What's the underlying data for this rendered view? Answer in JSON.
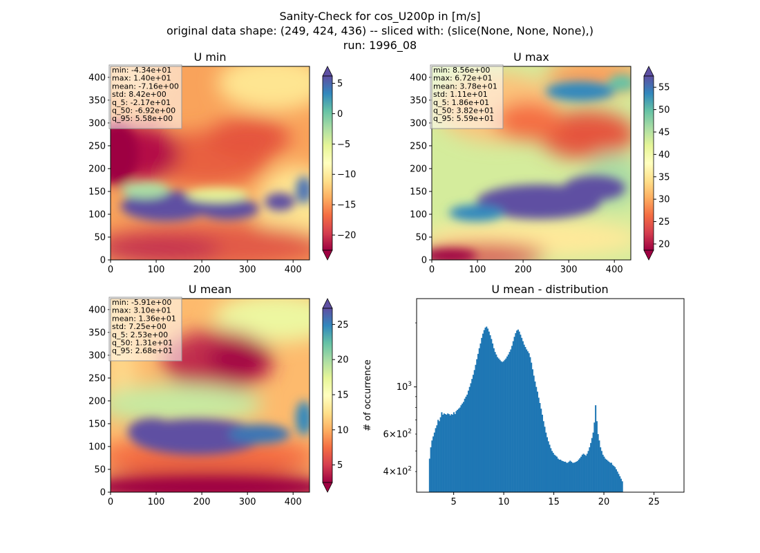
{
  "figure": {
    "title_lines": [
      "Sanity-Check for cos_U200p in [m/s]",
      "original data shape: (249, 424, 436) -- sliced with: (slice(None, None, None),)",
      "run: 1996_08"
    ]
  },
  "chart_data": [
    {
      "type": "heatmap",
      "title": "U min",
      "colormap": "Spectral",
      "x_ticks": [
        "0",
        "100",
        "200",
        "300",
        "400"
      ],
      "y_ticks": [
        "0",
        "50",
        "100",
        "150",
        "200",
        "250",
        "300",
        "350",
        "400"
      ],
      "xlim": [
        0,
        436
      ],
      "ylim": [
        0,
        424
      ],
      "colorbar": {
        "range": [
          -22.5,
          6.2
        ],
        "ticks": [
          -20,
          -15,
          -10,
          -5,
          0,
          5
        ],
        "tick_labels": [
          "−20",
          "−15",
          "−10",
          "−5",
          "0",
          "5"
        ],
        "extend": "both"
      },
      "stats": [
        "min: -4.34e+01",
        "max: 1.40e+01",
        "mean: -7.16e+00",
        "std: 8.42e+00",
        "q_5: -2.17e+01",
        "q_50: -6.92e+00",
        "q_95: 5.58e+00"
      ]
    },
    {
      "type": "heatmap",
      "title": "U max",
      "colormap": "Spectral",
      "x_ticks": [
        "0",
        "100",
        "200",
        "300",
        "400"
      ],
      "y_ticks": [
        "0",
        "50",
        "100",
        "150",
        "200",
        "250",
        "300",
        "350",
        "400"
      ],
      "xlim": [
        0,
        436
      ],
      "ylim": [
        0,
        424
      ],
      "colorbar": {
        "range": [
          18.6,
          57.5
        ],
        "ticks": [
          20,
          25,
          30,
          35,
          40,
          45,
          50,
          55
        ],
        "tick_labels": [
          "20",
          "25",
          "30",
          "35",
          "40",
          "45",
          "50",
          "55"
        ],
        "extend": "both"
      },
      "stats": [
        "min: 8.56e+00",
        "max: 6.72e+01",
        "mean: 3.78e+01",
        "std: 1.11e+01",
        "q_5: 1.86e+01",
        "q_50: 3.82e+01",
        "q_95: 5.59e+01"
      ]
    },
    {
      "type": "heatmap",
      "title": "U mean",
      "colormap": "Spectral",
      "x_ticks": [
        "0",
        "100",
        "200",
        "300",
        "400"
      ],
      "y_ticks": [
        "0",
        "50",
        "100",
        "150",
        "200",
        "250",
        "300",
        "350",
        "400"
      ],
      "xlim": [
        0,
        436
      ],
      "ylim": [
        0,
        424
      ],
      "colorbar": {
        "range": [
          2.5,
          27.3
        ],
        "ticks": [
          5,
          10,
          15,
          20,
          25
        ],
        "tick_labels": [
          "5",
          "10",
          "15",
          "20",
          "25"
        ],
        "extend": "both"
      },
      "stats": [
        "min: -5.91e+00",
        "max: 3.10e+01",
        "mean: 1.36e+01",
        "std: 7.25e+00",
        "q_5: 2.53e+00",
        "q_50: 1.31e+01",
        "q_95: 2.68e+01"
      ]
    },
    {
      "type": "bar",
      "title": "U mean - distribution",
      "ylabel": "# of occurrence",
      "xlabel": "",
      "y_scale": "log",
      "xlim": [
        1.3,
        28.0
      ],
      "ylim": [
        320,
        2600
      ],
      "x_ticks": [
        "5",
        "10",
        "15",
        "20",
        "25"
      ],
      "y_major_ticks": [
        {
          "value": 1000,
          "label": "10^3"
        }
      ],
      "y_minor_labeled": [
        {
          "value": 400,
          "label": "4×10^2"
        },
        {
          "value": 600,
          "label": "6×10^2"
        }
      ],
      "color": "#1f77b4",
      "bin_start": 2.53,
      "bin_width": 0.121,
      "values": [
        460,
        520,
        560,
        585,
        610,
        640,
        660,
        700,
        690,
        720,
        760,
        740,
        750,
        745,
        740,
        750,
        745,
        735,
        745,
        740,
        760,
        745,
        770,
        780,
        790,
        800,
        820,
        835,
        850,
        880,
        900,
        920,
        960,
        1000,
        1040,
        1090,
        1140,
        1200,
        1270,
        1350,
        1430,
        1520,
        1600,
        1700,
        1780,
        1850,
        1900,
        1920,
        1880,
        1820,
        1750,
        1680,
        1600,
        1520,
        1460,
        1420,
        1380,
        1360,
        1340,
        1320,
        1310,
        1320,
        1340,
        1360,
        1390,
        1420,
        1460,
        1500,
        1560,
        1640,
        1720,
        1790,
        1840,
        1860,
        1820,
        1760,
        1700,
        1640,
        1580,
        1540,
        1500,
        1470,
        1440,
        1380,
        1300,
        1210,
        1130,
        1060,
        1000,
        950,
        890,
        840,
        790,
        740,
        690,
        650,
        610,
        580,
        555,
        535,
        515,
        500,
        490,
        480,
        475,
        470,
        460,
        455,
        455,
        450,
        448,
        445,
        445,
        440,
        440,
        445,
        450,
        445,
        440,
        440,
        442,
        445,
        448,
        455,
        462,
        470,
        480,
        485,
        480,
        475,
        485,
        500,
        520,
        545,
        575,
        610,
        680,
        820,
        690,
        600,
        560,
        520,
        500,
        480,
        470,
        460,
        455,
        450,
        445,
        440,
        440,
        430,
        425,
        420,
        410,
        400,
        390,
        380,
        370,
        360
      ]
    }
  ]
}
